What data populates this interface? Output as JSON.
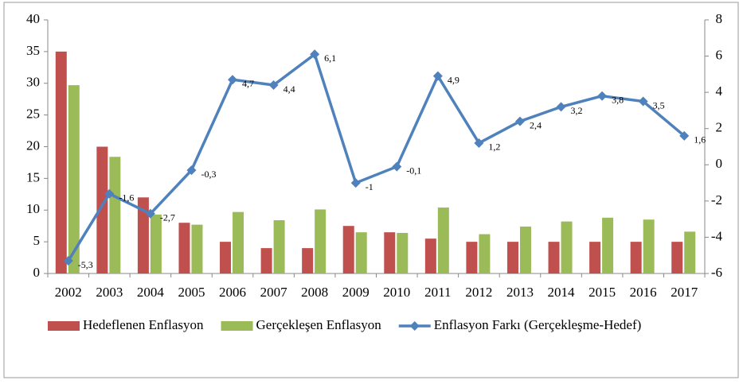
{
  "chart_data": {
    "type": "bar_line",
    "categories": [
      "2002",
      "2003",
      "2004",
      "2005",
      "2006",
      "2007",
      "2008",
      "2009",
      "2010",
      "2011",
      "2012",
      "2013",
      "2014",
      "2015",
      "2016",
      "2017"
    ],
    "series": [
      {
        "name": "Hedeflenen Enflasyon",
        "color": "#c0504d",
        "type": "bar",
        "values": [
          35,
          20,
          12,
          8,
          5,
          4,
          4,
          7.5,
          6.5,
          5.5,
          5,
          5,
          5,
          5,
          5,
          5
        ]
      },
      {
        "name": "Gerçekleşen Enflasyon",
        "color": "#9bbb59",
        "type": "bar",
        "values": [
          29.7,
          18.4,
          9.3,
          7.7,
          9.7,
          8.4,
          10.1,
          6.5,
          6.4,
          10.4,
          6.2,
          7.4,
          8.2,
          8.8,
          8.5,
          6.6
        ]
      },
      {
        "name": "Enflasyon Farkı (Gerçekleşme-Hedef)",
        "color": "#4f81bd",
        "type": "line",
        "axis": "y2",
        "values": [
          -5.3,
          -1.6,
          -2.7,
          -0.3,
          4.7,
          4.4,
          6.1,
          -1,
          -0.1,
          4.9,
          1.2,
          2.4,
          3.2,
          3.8,
          3.5,
          1.6
        ],
        "value_labels": [
          "-5,3",
          "-1,6",
          "-2,7",
          "-0,3",
          "4,7",
          "4,4",
          "6,1",
          "-1",
          "-0,1",
          "4,9",
          "1,2",
          "2,4",
          "3,2",
          "3,8",
          "3,5",
          "1,6"
        ]
      }
    ],
    "ylim": [
      0,
      40
    ],
    "yticks": [
      0,
      5,
      10,
      15,
      20,
      25,
      30,
      35,
      40
    ],
    "y2lim": [
      -6,
      8
    ],
    "y2ticks": [
      -6,
      -4,
      -2,
      0,
      2,
      4,
      6,
      8
    ],
    "grid": false,
    "legend": "bottom"
  }
}
